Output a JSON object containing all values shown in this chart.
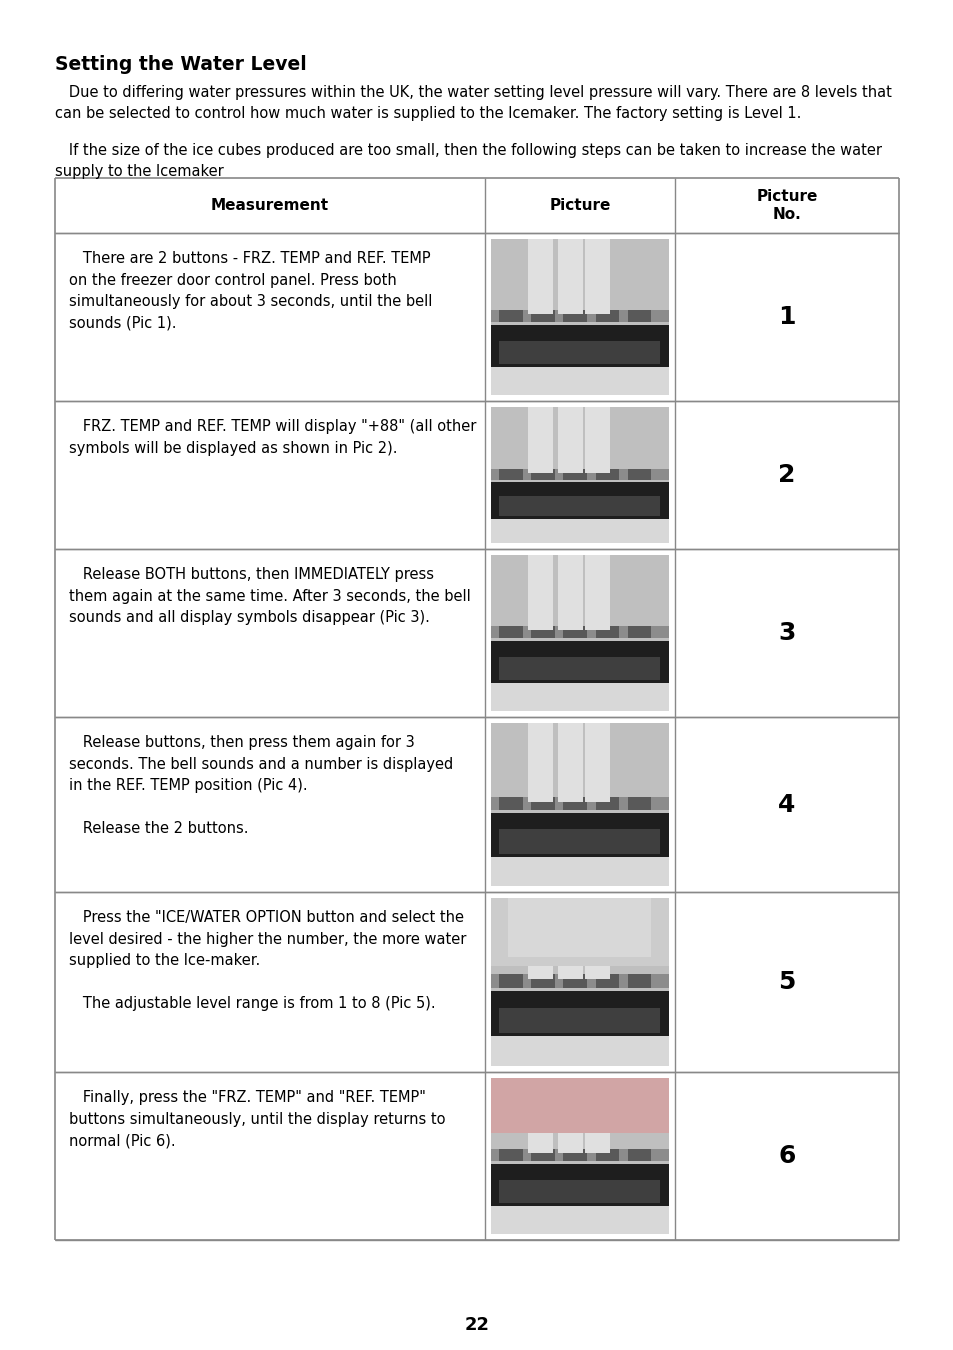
{
  "title": "Setting the Water Level",
  "para1": "   Due to differing water pressures within the UK, the water setting level pressure will vary. There are 8 levels that\ncan be selected to control how much water is supplied to the Icemaker. The factory setting is Level 1.",
  "para2": "   If the size of the ice cubes produced are too small, then the following steps can be taken to increase the water\nsupply to the Icemaker",
  "col_headers": [
    "Measurement",
    "Picture",
    "Picture\nNo."
  ],
  "rows": [
    {
      "text": "   There are 2 buttons - FRZ. TEMP and REF. TEMP\non the freezer door control panel. Press both\nsimultaneously for about 3 seconds, until the bell\nsounds (Pic 1).",
      "pic_no": "1"
    },
    {
      "text": "   FRZ. TEMP and REF. TEMP will display \"+88\" (all other\nsymbols will be displayed as shown in Pic 2).",
      "pic_no": "2"
    },
    {
      "text": "   Release BOTH buttons, then IMMEDIATELY press\nthem again at the same time. After 3 seconds, the bell\nsounds and all display symbols disappear (Pic 3).",
      "pic_no": "3"
    },
    {
      "text": "   Release buttons, then press them again for 3\nseconds. The bell sounds and a number is displayed\nin the REF. TEMP position (Pic 4).\n\n   Release the 2 buttons.",
      "pic_no": "4"
    },
    {
      "text": "   Press the \"ICE/WATER OPTION button and select the\nlevel desired - the higher the number, the more water\nsupplied to the Ice-maker.\n\n   The adjustable level range is from 1 to 8 (Pic 5).",
      "pic_no": "5"
    },
    {
      "text": "   Finally, press the \"FRZ. TEMP\" and \"REF. TEMP\"\nbuttons simultaneously, until the display returns to\nnormal (Pic 6).",
      "pic_no": "6"
    }
  ],
  "page_number": "22",
  "bg_color": "#ffffff",
  "text_color": "#000000",
  "table_line_color": "#888888"
}
